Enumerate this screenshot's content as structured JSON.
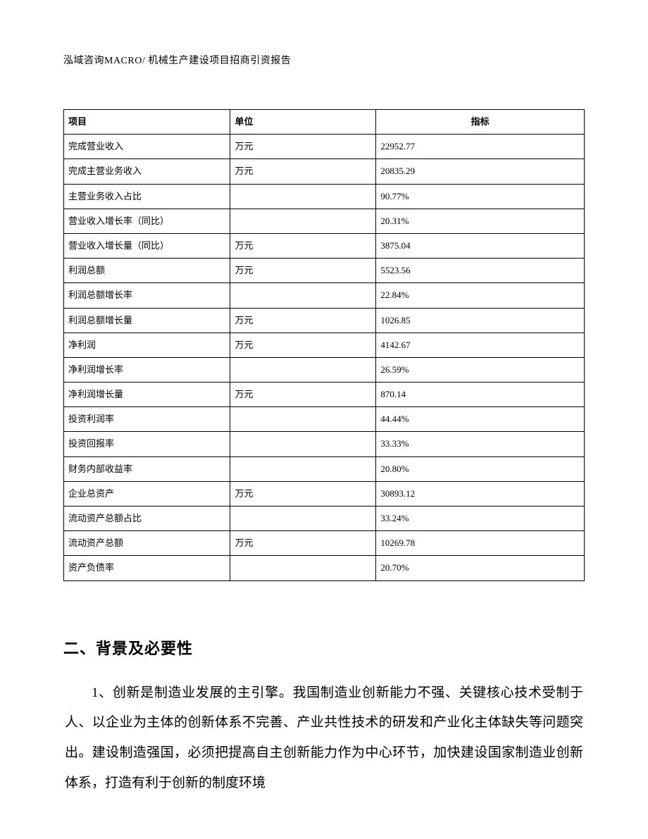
{
  "header": {
    "text": "泓域咨询MACRO/ 机械生产建设项目招商引资报告"
  },
  "table": {
    "columns": [
      {
        "key": "item",
        "label": "项目",
        "align": "left"
      },
      {
        "key": "unit",
        "label": "单位",
        "align": "left"
      },
      {
        "key": "value",
        "label": "指标",
        "align": "center"
      }
    ],
    "column_widths_pct": [
      32,
      28,
      40
    ],
    "border_color": "#000000",
    "font_size_pt": 10,
    "rows": [
      {
        "item": "完成营业收入",
        "unit": "万元",
        "value": "22952.77"
      },
      {
        "item": "完成主营业务收入",
        "unit": "万元",
        "value": "20835.29"
      },
      {
        "item": "主营业务收入占比",
        "unit": "",
        "value": "90.77%"
      },
      {
        "item": "营业收入增长率（同比）",
        "unit": "",
        "value": "20.31%"
      },
      {
        "item": "营业收入增长量（同比）",
        "unit": "万元",
        "value": "3875.04"
      },
      {
        "item": "利润总额",
        "unit": "万元",
        "value": "5523.56"
      },
      {
        "item": "利润总额增长率",
        "unit": "",
        "value": "22.84%"
      },
      {
        "item": "利润总额增长量",
        "unit": "万元",
        "value": "1026.85"
      },
      {
        "item": "净利润",
        "unit": "万元",
        "value": "4142.67"
      },
      {
        "item": "净利润增长率",
        "unit": "",
        "value": "26.59%"
      },
      {
        "item": "净利润增长量",
        "unit": "万元",
        "value": "870.14"
      },
      {
        "item": "投资利润率",
        "unit": "",
        "value": "44.44%"
      },
      {
        "item": "投资回报率",
        "unit": "",
        "value": "33.33%"
      },
      {
        "item": "财务内部收益率",
        "unit": "",
        "value": "20.80%"
      },
      {
        "item": "企业总资产",
        "unit": "万元",
        "value": "30893.12"
      },
      {
        "item": "流动资产总额占比",
        "unit": "",
        "value": "33.24%"
      },
      {
        "item": "流动资产总额",
        "unit": "万元",
        "value": "10269.78"
      },
      {
        "item": "资产负债率",
        "unit": "",
        "value": "20.70%"
      }
    ]
  },
  "section": {
    "heading": "二、背景及必要性",
    "paragraph": "1、创新是制造业发展的主引擎。我国制造业创新能力不强、关键核心技术受制于人、以企业为主体的创新体系不完善、产业共性技术的研发和产业化主体缺失等问题突出。建设制造强国，必须把提高自主创新能力作为中心环节，加快建设国家制造业创新体系，打造有利于创新的制度环境"
  },
  "style": {
    "page_bg": "#ffffff",
    "text_color": "#000000",
    "heading_font": "SimHei",
    "body_font": "SimSun",
    "heading_fontsize_pt": 16,
    "body_fontsize_pt": 14,
    "body_line_height": 2.25,
    "body_text_indent_em": 2
  }
}
